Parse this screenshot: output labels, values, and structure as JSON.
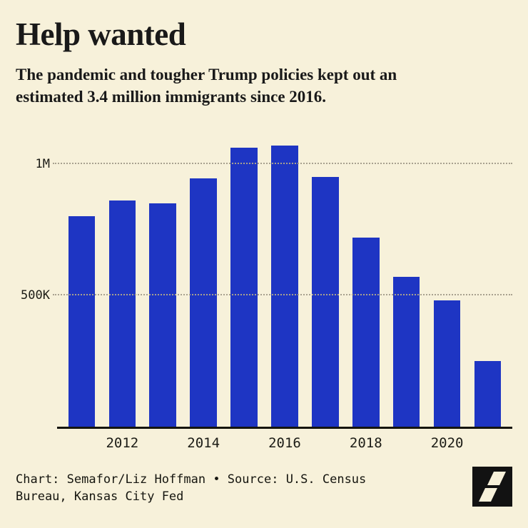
{
  "page": {
    "background": "#f7f1da",
    "text_color": "#191919"
  },
  "header": {
    "title": "Help wanted",
    "subtitle": "The pandemic and tougher Trump policies kept out an estimated 3.4 million immigrants since 2016."
  },
  "chart_data": {
    "type": "bar",
    "title": "Help wanted",
    "categories": [
      "2011",
      "2012",
      "2013",
      "2014",
      "2015",
      "2016",
      "2017",
      "2018",
      "2019",
      "2020",
      "2021"
    ],
    "values": [
      800000,
      860000,
      850000,
      945000,
      1060000,
      1070000,
      950000,
      720000,
      570000,
      480000,
      250000
    ],
    "x_tick_labels": [
      "2012",
      "2014",
      "2016",
      "2018",
      "2020"
    ],
    "y_ticks": [
      {
        "label": "1M",
        "value": 1000000
      },
      {
        "label": "500K",
        "value": 500000
      }
    ],
    "ylim": [
      0,
      1100000
    ],
    "xlabel": "",
    "ylabel": "",
    "bar_color": "#1e35c3",
    "grid": "horizontal-dotted",
    "legend": "none"
  },
  "footer": {
    "credit": "Chart: Semafor/Liz Hoffman • Source: U.S. Census Bureau, Kansas City Fed",
    "logo_name": "semafor-logo",
    "logo_bg": "#121212",
    "logo_fg": "#f7f1da"
  }
}
